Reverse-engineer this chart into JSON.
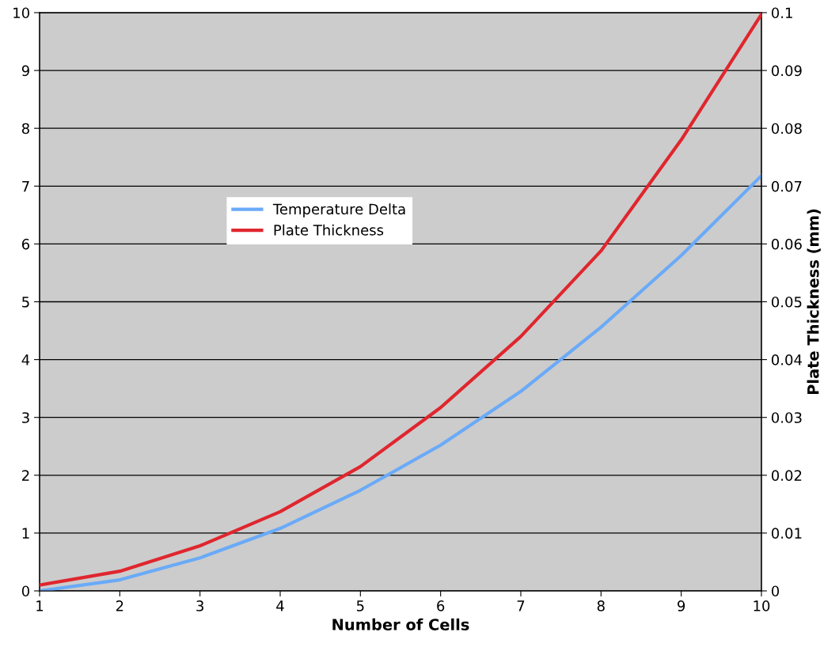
{
  "chart_data": {
    "type": "line",
    "xlabel": "Number of Cells",
    "y2label": "Plate Thickness (mm)",
    "x": [
      1,
      2,
      3,
      4,
      5,
      6,
      7,
      8,
      9,
      10
    ],
    "series": [
      {
        "name": "Temperature Delta",
        "color": "#6aaaf8",
        "values": [
          0.0,
          0.19,
          0.57,
          1.08,
          1.74,
          2.52,
          3.45,
          4.56,
          5.8,
          7.18
        ]
      },
      {
        "name": "Plate Thickness",
        "color": "#e0262e",
        "axis": "y2",
        "values": [
          0.001,
          0.0034,
          0.0078,
          0.0137,
          0.0215,
          0.0317,
          0.044,
          0.0588,
          0.078,
          0.0997
        ]
      }
    ],
    "xlim": [
      1,
      10
    ],
    "xticks": [
      1,
      2,
      3,
      4,
      5,
      6,
      7,
      8,
      9,
      10
    ],
    "ylim": [
      0,
      10
    ],
    "yticks": [
      0,
      1,
      2,
      3,
      4,
      5,
      6,
      7,
      8,
      9,
      10
    ],
    "y2lim": [
      0,
      0.1
    ],
    "y2ticks": [
      0,
      0.01,
      0.02,
      0.03,
      0.04,
      0.05,
      0.06,
      0.07,
      0.08,
      0.09,
      0.1
    ],
    "grid": "y",
    "legend": "center left",
    "marker": "none",
    "line_style": "solid"
  }
}
